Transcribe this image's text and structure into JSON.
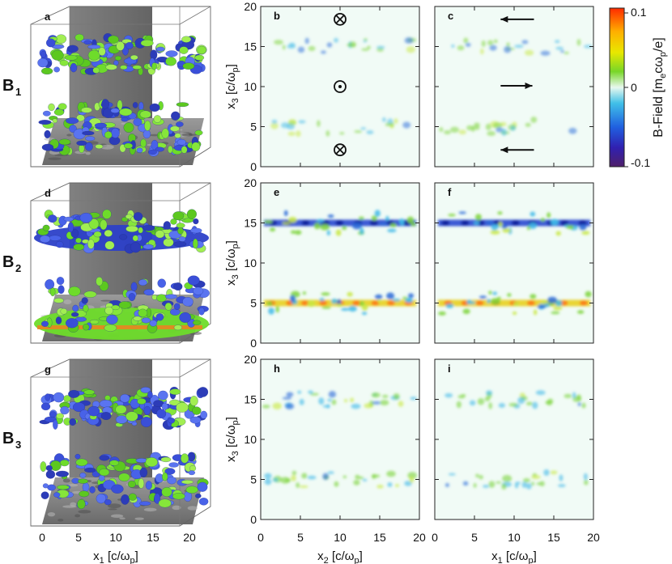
{
  "rows": [
    {
      "label_main": "B",
      "label_sub": "1",
      "panels": [
        {
          "id": "cube",
          "letter": "a"
        },
        {
          "id": "b",
          "letter": "b",
          "band_strength": 0.35,
          "symbols": [
            {
              "kind": "cross",
              "x": 10,
              "y": 18.4
            },
            {
              "kind": "dot",
              "x": 10,
              "y": 10
            },
            {
              "kind": "cross",
              "x": 10,
              "y": 2.1
            }
          ]
        },
        {
          "id": "c",
          "letter": "c",
          "band_strength": 0.35,
          "arrows": [
            {
              "dir": "left",
              "y": 18.4,
              "x_from": 12.5,
              "x_to": 8.3
            },
            {
              "dir": "right",
              "y": 10.1,
              "x_from": 8.3,
              "x_to": 12.3
            },
            {
              "dir": "left",
              "y": 2.1,
              "x_from": 12.5,
              "x_to": 8.3
            }
          ]
        }
      ]
    },
    {
      "label_main": "B",
      "label_sub": "2",
      "panels": [
        {
          "id": "cube",
          "letter": "d"
        },
        {
          "id": "e",
          "letter": "e",
          "band_strength": 1.0
        },
        {
          "id": "f",
          "letter": "f",
          "band_strength": 1.0
        }
      ]
    },
    {
      "label_main": "B",
      "label_sub": "3",
      "panels": [
        {
          "id": "cube",
          "letter": "g"
        },
        {
          "id": "h",
          "letter": "h",
          "band_strength": 0.55
        },
        {
          "id": "i",
          "letter": "i",
          "band_strength": 0.5
        }
      ]
    }
  ],
  "axes": {
    "ylabel": "x3 [c/ωp]",
    "ylabel_parts": {
      "main": "x",
      "sub": "3",
      "rest": " [c/ω",
      "sub2": "p",
      "end": "]"
    },
    "yticks": [
      "0",
      "5",
      "10",
      "15",
      "20"
    ],
    "xticks": [
      "0",
      "5",
      "10",
      "15",
      "20"
    ],
    "xlabel_col1": "x1 [c/ωp]",
    "xlabel_col2": "x2 [c/ωp]",
    "xlabel_col3": "x1 [c/ωp]",
    "xlabel_parts_1": {
      "main": "x",
      "sub": "1"
    },
    "xlabel_parts_2": {
      "main": "x",
      "sub": "2"
    },
    "xlabel_parts_3": {
      "main": "x",
      "sub": "1"
    },
    "xlabel_rest": " [c/ω",
    "xlabel_sub2": "p",
    "xlabel_end": "]"
  },
  "colorbar": {
    "label": "B-Field [mecωp/e]",
    "ticks": [
      "0.1",
      "0",
      "-0.1"
    ],
    "colors": [
      "#ff2a00",
      "#ffb000",
      "#e8e800",
      "#78d628",
      "#e8f8ee",
      "#40c0e8",
      "#2060e0",
      "#3020b0",
      "#50206a"
    ]
  },
  "chart_data": [
    {
      "type": "heatmap",
      "title": "b",
      "xlabel": "x2 [c/ωp]",
      "ylabel": "x3 [c/ωp]",
      "xlim": [
        0,
        20
      ],
      "ylim": [
        0,
        20
      ],
      "bands_at_x3": [
        5,
        15
      ],
      "color_range": [
        -0.1,
        0.1
      ]
    },
    {
      "type": "heatmap",
      "title": "c",
      "xlabel": "x1 [c/ωp]",
      "ylabel": "",
      "xlim": [
        0,
        20
      ],
      "ylim": [
        0,
        20
      ],
      "bands_at_x3": [
        5,
        15
      ],
      "color_range": [
        -0.1,
        0.1
      ]
    },
    {
      "type": "heatmap",
      "title": "e",
      "xlabel": "x2 [c/ωp]",
      "ylabel": "x3 [c/ωp]",
      "xlim": [
        0,
        20
      ],
      "ylim": [
        0,
        20
      ],
      "bands_at_x3": [
        5,
        15
      ],
      "color_range": [
        -0.1,
        0.1
      ]
    },
    {
      "type": "heatmap",
      "title": "f",
      "xlabel": "x1 [c/ωp]",
      "ylabel": "",
      "xlim": [
        0,
        20
      ],
      "ylim": [
        0,
        20
      ],
      "bands_at_x3": [
        5,
        15
      ],
      "color_range": [
        -0.1,
        0.1
      ]
    },
    {
      "type": "heatmap",
      "title": "h",
      "xlabel": "x2 [c/ωp]",
      "ylabel": "x3 [c/ωp]",
      "xlim": [
        0,
        20
      ],
      "ylim": [
        0,
        20
      ],
      "bands_at_x3": [
        5,
        15
      ],
      "color_range": [
        -0.1,
        0.1
      ]
    },
    {
      "type": "heatmap",
      "title": "i",
      "xlabel": "x1 [c/ωp]",
      "ylabel": "",
      "xlim": [
        0,
        20
      ],
      "ylim": [
        0,
        20
      ],
      "bands_at_x3": [
        5,
        15
      ],
      "color_range": [
        -0.1,
        0.1
      ]
    }
  ]
}
